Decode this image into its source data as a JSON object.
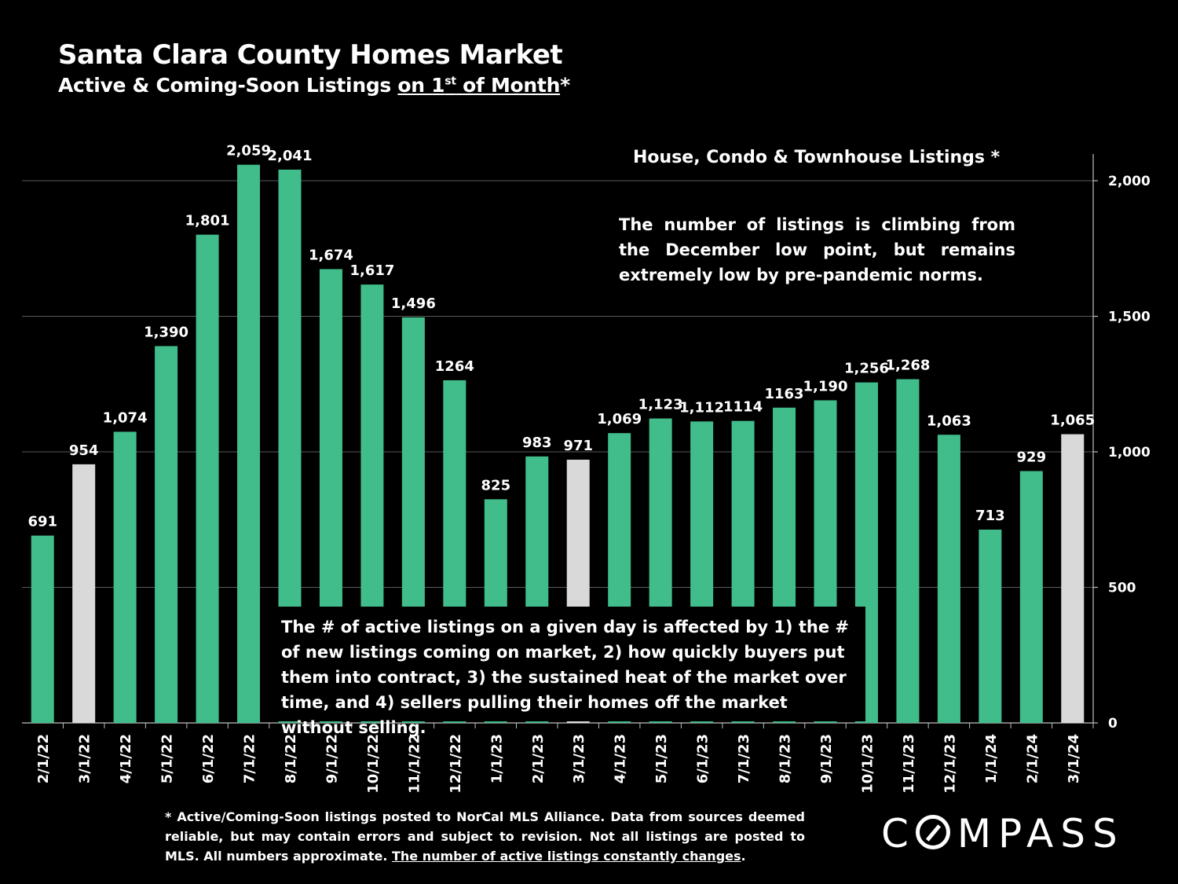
{
  "header": {
    "title": "Santa Clara County Homes Market",
    "subtitle_pre": "Active & Coming-Soon Listings ",
    "subtitle_u1": "on 1",
    "subtitle_sup": "st",
    "subtitle_u2": " of Month",
    "subtitle_post": "*"
  },
  "legend_label": "House, Condo & Townhouse Listings *",
  "note_top": "The number of listings is climbing from the December low point, but remains extremely low by pre-pandemic norms.",
  "note_bottom": "The # of active listings on a given day is affected by 1) the # of new listings coming on market, 2) how quickly buyers put them into contract, 3) the sustained heat of the market over time, and 4) sellers pulling their homes off the market without selling.",
  "footnote": {
    "text": "* Active/Coming-Soon listings posted to NorCal MLS Alliance. Data from sources deemed reliable, but may contain errors and subject to revision. Not all listings are posted to MLS. All numbers approximate. ",
    "underlined": "The number of active listings constantly changes",
    "end": "."
  },
  "logo_text": "MPASS",
  "logo_prefix": "C",
  "colors": {
    "green": "#41bd8b",
    "grey": "#d9d9d9",
    "background": "#000000",
    "grid": "#595959"
  },
  "chart_data": {
    "type": "bar",
    "title": "Santa Clara County Homes Market",
    "categories": [
      "2/1/22",
      "3/1/22",
      "4/1/22",
      "5/1/22",
      "6/1/22",
      "7/1/22",
      "8/1/22",
      "9/1/22",
      "10/1/22",
      "11/1/22",
      "12/1/22",
      "1/1/23",
      "2/1/23",
      "3/1/23",
      "4/1/23",
      "5/1/23",
      "6/1/23",
      "7/1/23",
      "8/1/23",
      "9/1/23",
      "10/1/23",
      "11/1/23",
      "12/1/23",
      "1/1/24",
      "2/1/24",
      "3/1/24"
    ],
    "values": [
      691,
      954,
      1074,
      1390,
      1801,
      2059,
      2041,
      1674,
      1617,
      1496,
      1264,
      825,
      983,
      971,
      1069,
      1123,
      1112,
      1114,
      1163,
      1190,
      1256,
      1268,
      1063,
      713,
      929,
      1065
    ],
    "labels": [
      "691",
      "954",
      "1,074",
      "1,390",
      "1,801",
      "2,059",
      "2,041",
      "1,674",
      "1,617",
      "1,496",
      "1264",
      "825",
      "983",
      "971",
      "1,069",
      "1,123",
      "1,112",
      "1114",
      "1163",
      "1,190",
      "1,256",
      "1,268",
      "1,063",
      "713",
      "929",
      "1,065"
    ],
    "highlight": [
      false,
      true,
      false,
      false,
      false,
      false,
      false,
      false,
      false,
      false,
      false,
      false,
      false,
      true,
      false,
      false,
      false,
      false,
      false,
      false,
      false,
      false,
      false,
      false,
      false,
      true
    ],
    "yaxis_position": "right",
    "yticks": [
      0,
      500,
      1000,
      1500,
      2000
    ],
    "ytick_labels": [
      "0",
      "500",
      "1,000",
      "1,500",
      "2,000"
    ],
    "ylim": [
      0,
      2000
    ],
    "grid": true,
    "legend": "House, Condo & Townhouse Listings *",
    "xlabel": "",
    "ylabel": ""
  }
}
